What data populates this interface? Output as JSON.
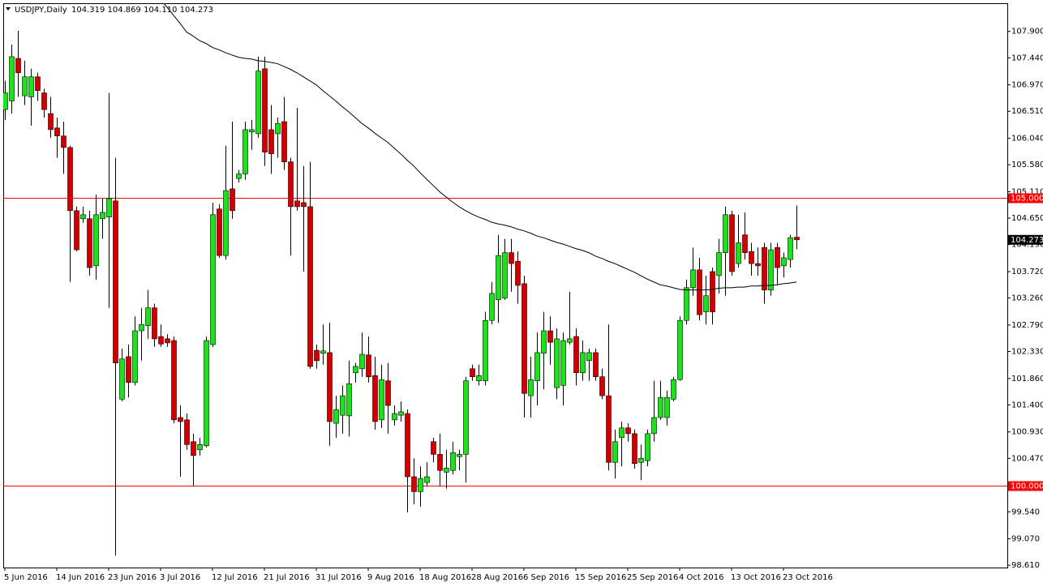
{
  "chart_data": {
    "type": "candlestick",
    "title": "USDJPY,Daily",
    "ohlc_label": "104.319 104.869 104.110 104.273",
    "up_color": "#22dd22",
    "down_color": "#cc0000",
    "ylim": [
      98.57,
      108.39
    ],
    "yticks": [
      {
        "value": 107.9,
        "label": "107.900"
      },
      {
        "value": 107.44,
        "label": "107.440"
      },
      {
        "value": 106.97,
        "label": "106.970"
      },
      {
        "value": 106.51,
        "label": "106.510"
      },
      {
        "value": 106.04,
        "label": "106.040"
      },
      {
        "value": 105.58,
        "label": "105.580"
      },
      {
        "value": 105.11,
        "label": "105.110"
      },
      {
        "value": 104.65,
        "label": "104.650"
      },
      {
        "value": 104.19,
        "label": "104.190"
      },
      {
        "value": 103.72,
        "label": "103.720"
      },
      {
        "value": 103.26,
        "label": "103.260"
      },
      {
        "value": 102.79,
        "label": "102.790"
      },
      {
        "value": 102.33,
        "label": "102.330"
      },
      {
        "value": 101.86,
        "label": "101.860"
      },
      {
        "value": 101.4,
        "label": "101.400"
      },
      {
        "value": 100.93,
        "label": "100.930"
      },
      {
        "value": 100.47,
        "label": "100.470"
      },
      {
        "value": 100,
        "label": "100.000"
      },
      {
        "value": 99.54,
        "label": "99.540"
      },
      {
        "value": 99.07,
        "label": "99.070"
      },
      {
        "value": 98.61,
        "label": "98.610"
      }
    ],
    "hlines": [
      {
        "value": 105,
        "label": "105.000",
        "color": "#ff0000"
      },
      {
        "value": 100,
        "label": "100.000",
        "color": "#ff0000"
      }
    ],
    "current_price": {
      "value": 104.273,
      "label": "104.273"
    },
    "categories": [
      "5 Jun 2016",
      null,
      null,
      null,
      null,
      null,
      null,
      null,
      "14 Jun 2016",
      null,
      null,
      null,
      null,
      null,
      null,
      null,
      "23 Jun 2016",
      null,
      null,
      null,
      null,
      null,
      null,
      null,
      "3 Jul 2016",
      null,
      null,
      null,
      null,
      null,
      null,
      null,
      "12 Jul 2016",
      null,
      null,
      null,
      null,
      null,
      null,
      null,
      "21 Jul 2016",
      null,
      null,
      null,
      null,
      null,
      null,
      null,
      "31 Jul 2016",
      null,
      null,
      null,
      null,
      null,
      null,
      null,
      "9 Aug 2016",
      null,
      null,
      null,
      null,
      null,
      null,
      null,
      "18 Aug 2016",
      null,
      null,
      null,
      null,
      null,
      null,
      null,
      "28 Aug 2016",
      null,
      null,
      null,
      null,
      null,
      null,
      null,
      "6 Sep 2016",
      null,
      null,
      null,
      null,
      null,
      null,
      null,
      "15 Sep 2016",
      null,
      null,
      null,
      null,
      null,
      null,
      null,
      "25 Sep 2016",
      null,
      null,
      null,
      null,
      null,
      null,
      null,
      "4 Oct 2016",
      null,
      null,
      null,
      null,
      null,
      null,
      null,
      "13 Oct 2016",
      null,
      null,
      null,
      null,
      null,
      null,
      null,
      "23 Oct 2016",
      null,
      null
    ],
    "candles": {
      "open": [
        106.54,
        106.69,
        107.43,
        106.78,
        106.76,
        107.11,
        106.83,
        106.47,
        106.22,
        106.08,
        105.88,
        104.78,
        104.64,
        104.64,
        103.82,
        104.64,
        104.67,
        104.95,
        101.5,
        102.24,
        101.79,
        102.69,
        102.78,
        103.09,
        102.59,
        102.55,
        102.52,
        101.18,
        101.14,
        100.76,
        100.62,
        100.69,
        102.45,
        104.81,
        104.0,
        105.16,
        105.34,
        105.42,
        106.15,
        106.12,
        107.25,
        106.19,
        106.12,
        106.33,
        105.63,
        104.95,
        104.92,
        104.85,
        102.35,
        102.3,
        102.31,
        101.08,
        101.22,
        101.21,
        101.96,
        102.03,
        102.27,
        101.91,
        101.14,
        101.82,
        101.14,
        101.22,
        101.25,
        100.15,
        99.89,
        100.05,
        100.76,
        100.54,
        100.23,
        100.26,
        100.5,
        100.54,
        102.03,
        101.82,
        101.82,
        102.87,
        103.23,
        103.26,
        104.05,
        103.9,
        103.51,
        101.56,
        101.82,
        102.3,
        102.69,
        101.7,
        101.74,
        102.49,
        102.59,
        101.96,
        102.17,
        102.31,
        101.89,
        101.56,
        100.4,
        100.83,
        101.0,
        100.9,
        100.4,
        100.43,
        100.9,
        101.18,
        101.18,
        101.5,
        101.84,
        102.87,
        103.44,
        103.75,
        103.02,
        103.72,
        103.65,
        104.05,
        104.71,
        103.86,
        104.36,
        104.07,
        103.86,
        104.14,
        103.4,
        104.14,
        103.82,
        103.93,
        104.319
      ],
      "high": [
        107.04,
        107.67,
        107.91,
        107.39,
        107.25,
        107.18,
        106.9,
        106.76,
        106.4,
        106.33,
        105.91,
        104.85,
        104.85,
        104.78,
        105.06,
        104.99,
        106.83,
        105.7,
        102.38,
        102.45,
        102.94,
        103.09,
        103.4,
        103.16,
        102.8,
        102.63,
        102.59,
        101.39,
        101.25,
        100.9,
        100.83,
        102.59,
        104.92,
        104.89,
        105.91,
        106.33,
        105.49,
        106.33,
        106.36,
        107.46,
        107.46,
        106.62,
        106.4,
        106.76,
        105.7,
        106.57,
        105.56,
        105.63,
        102.45,
        102.8,
        102.83,
        101.56,
        101.74,
        102.17,
        102.13,
        102.66,
        102.59,
        102.24,
        102.1,
        102.13,
        101.39,
        101.46,
        101.32,
        100.47,
        100.33,
        100.4,
        100.83,
        100.9,
        100.62,
        100.76,
        100.62,
        101.89,
        102.1,
        102.1,
        103.02,
        103.54,
        104.36,
        104.29,
        104.29,
        104.07,
        103.65,
        102.24,
        102.66,
        103.02,
        102.94,
        102.73,
        102.66,
        103.37,
        102.73,
        102.52,
        102.38,
        102.38,
        102.03,
        102.8,
        100.97,
        101.11,
        101.08,
        100.97,
        100.71,
        100.97,
        101.82,
        101.82,
        101.65,
        101.89,
        102.94,
        103.58,
        104.14,
        103.96,
        103.65,
        103.79,
        104.29,
        104.85,
        104.78,
        104.71,
        104.75,
        104.22,
        104.14,
        104.22,
        104.22,
        104.22,
        104.05,
        104.36,
        104.869
      ],
      "low": [
        106.36,
        106.47,
        106.76,
        106.62,
        106.26,
        106.69,
        106.4,
        106.05,
        105.7,
        105.42,
        103.54,
        104.07,
        104.57,
        103.65,
        103.58,
        104.29,
        103.09,
        98.78,
        101.46,
        101.53,
        101.74,
        102.17,
        102.55,
        102.41,
        102.41,
        102.41,
        101.08,
        100.15,
        100.62,
        99.98,
        100.52,
        100.66,
        102.41,
        103.96,
        103.93,
        104.64,
        105.27,
        105.32,
        105.84,
        106.05,
        105.56,
        105.42,
        105.7,
        105.49,
        104.0,
        104.78,
        103.72,
        102.03,
        102.03,
        102.1,
        100.69,
        100.83,
        100.9,
        100.85,
        101.79,
        101.89,
        101.79,
        100.97,
        101.0,
        100.9,
        101.04,
        101.11,
        99.53,
        99.67,
        99.63,
        99.98,
        100.4,
        99.98,
        99.94,
        100.19,
        100.26,
        100.05,
        101.82,
        101.74,
        101.74,
        102.8,
        102.83,
        103.23,
        103.37,
        103.16,
        101.18,
        101.18,
        101.39,
        101.67,
        102.1,
        101.5,
        101.39,
        102.45,
        101.74,
        101.82,
        101.82,
        101.82,
        101.5,
        100.26,
        100.12,
        100.33,
        100.76,
        100.29,
        100.09,
        100.33,
        100.76,
        101.14,
        101.04,
        101.46,
        101.82,
        102.8,
        103.3,
        102.87,
        102.8,
        102.8,
        103.34,
        103.3,
        103.65,
        103.79,
        103.93,
        103.65,
        103.65,
        103.16,
        103.3,
        103.48,
        103.62,
        103.79,
        104.11
      ],
      "close": [
        106.83,
        107.46,
        107.18,
        107.11,
        107.11,
        106.87,
        106.54,
        106.19,
        106.08,
        105.88,
        104.78,
        104.1,
        104.71,
        103.79,
        104.71,
        104.75,
        104.99,
        102.13,
        102.2,
        101.79,
        102.69,
        102.8,
        103.09,
        102.55,
        102.46,
        102.48,
        101.14,
        101.11,
        100.71,
        100.52,
        100.71,
        102.52,
        104.71,
        104.0,
        105.13,
        104.78,
        105.42,
        106.19,
        106.19,
        107.21,
        105.8,
        105.77,
        106.3,
        105.63,
        104.85,
        104.85,
        104.85,
        102.07,
        102.17,
        102.34,
        101.11,
        101.32,
        101.56,
        101.77,
        102.07,
        102.28,
        101.89,
        101.11,
        101.84,
        101.39,
        101.25,
        101.28,
        100.15,
        99.89,
        100.12,
        100.15,
        100.54,
        100.26,
        100.3,
        100.57,
        100.54,
        101.82,
        101.89,
        101.91,
        102.87,
        103.34,
        104.0,
        104.05,
        103.86,
        103.48,
        101.6,
        101.84,
        102.31,
        102.69,
        102.49,
        102.55,
        102.52,
        102.55,
        101.96,
        102.31,
        102.31,
        101.89,
        101.56,
        100.4,
        100.76,
        101.0,
        100.9,
        100.38,
        100.47,
        100.9,
        101.18,
        101.53,
        101.53,
        101.84,
        102.87,
        103.44,
        103.75,
        102.97,
        103.3,
        103.02,
        104.05,
        104.71,
        103.72,
        104.22,
        104.05,
        103.86,
        103.82,
        103.4,
        104.1,
        103.79,
        103.96,
        104.31,
        104.273
      ]
    },
    "ma": {
      "color": "#000000",
      "values": [
        null,
        null,
        null,
        null,
        null,
        null,
        null,
        null,
        null,
        null,
        null,
        null,
        null,
        null,
        null,
        null,
        null,
        null,
        null,
        null,
        null,
        null,
        null,
        null,
        108.45,
        108.32,
        108.18,
        108.04,
        107.89,
        107.82,
        107.74,
        107.69,
        107.62,
        107.58,
        107.53,
        107.49,
        107.45,
        107.43,
        107.42,
        107.39,
        107.38,
        107.36,
        107.34,
        107.29,
        107.24,
        107.18,
        107.11,
        107.04,
        106.97,
        106.87,
        106.78,
        106.69,
        106.59,
        106.5,
        106.4,
        106.3,
        106.22,
        106.13,
        106.05,
        105.97,
        105.87,
        105.77,
        105.66,
        105.56,
        105.44,
        105.33,
        105.22,
        105.11,
        105.02,
        104.93,
        104.85,
        104.78,
        104.72,
        104.67,
        104.63,
        104.58,
        104.55,
        104.53,
        104.5,
        104.46,
        104.43,
        104.39,
        104.34,
        104.31,
        104.27,
        104.23,
        104.2,
        104.16,
        104.12,
        104.09,
        104.05,
        103.99,
        103.95,
        103.9,
        103.86,
        103.81,
        103.76,
        103.71,
        103.65,
        103.59,
        103.54,
        103.49,
        103.47,
        103.44,
        103.41,
        103.4,
        103.4,
        103.4,
        103.4,
        103.41,
        103.43,
        103.44,
        103.44,
        103.45,
        103.45,
        103.47,
        103.47,
        103.48,
        103.48,
        103.49,
        103.51,
        103.52,
        103.54
      ]
    }
  }
}
